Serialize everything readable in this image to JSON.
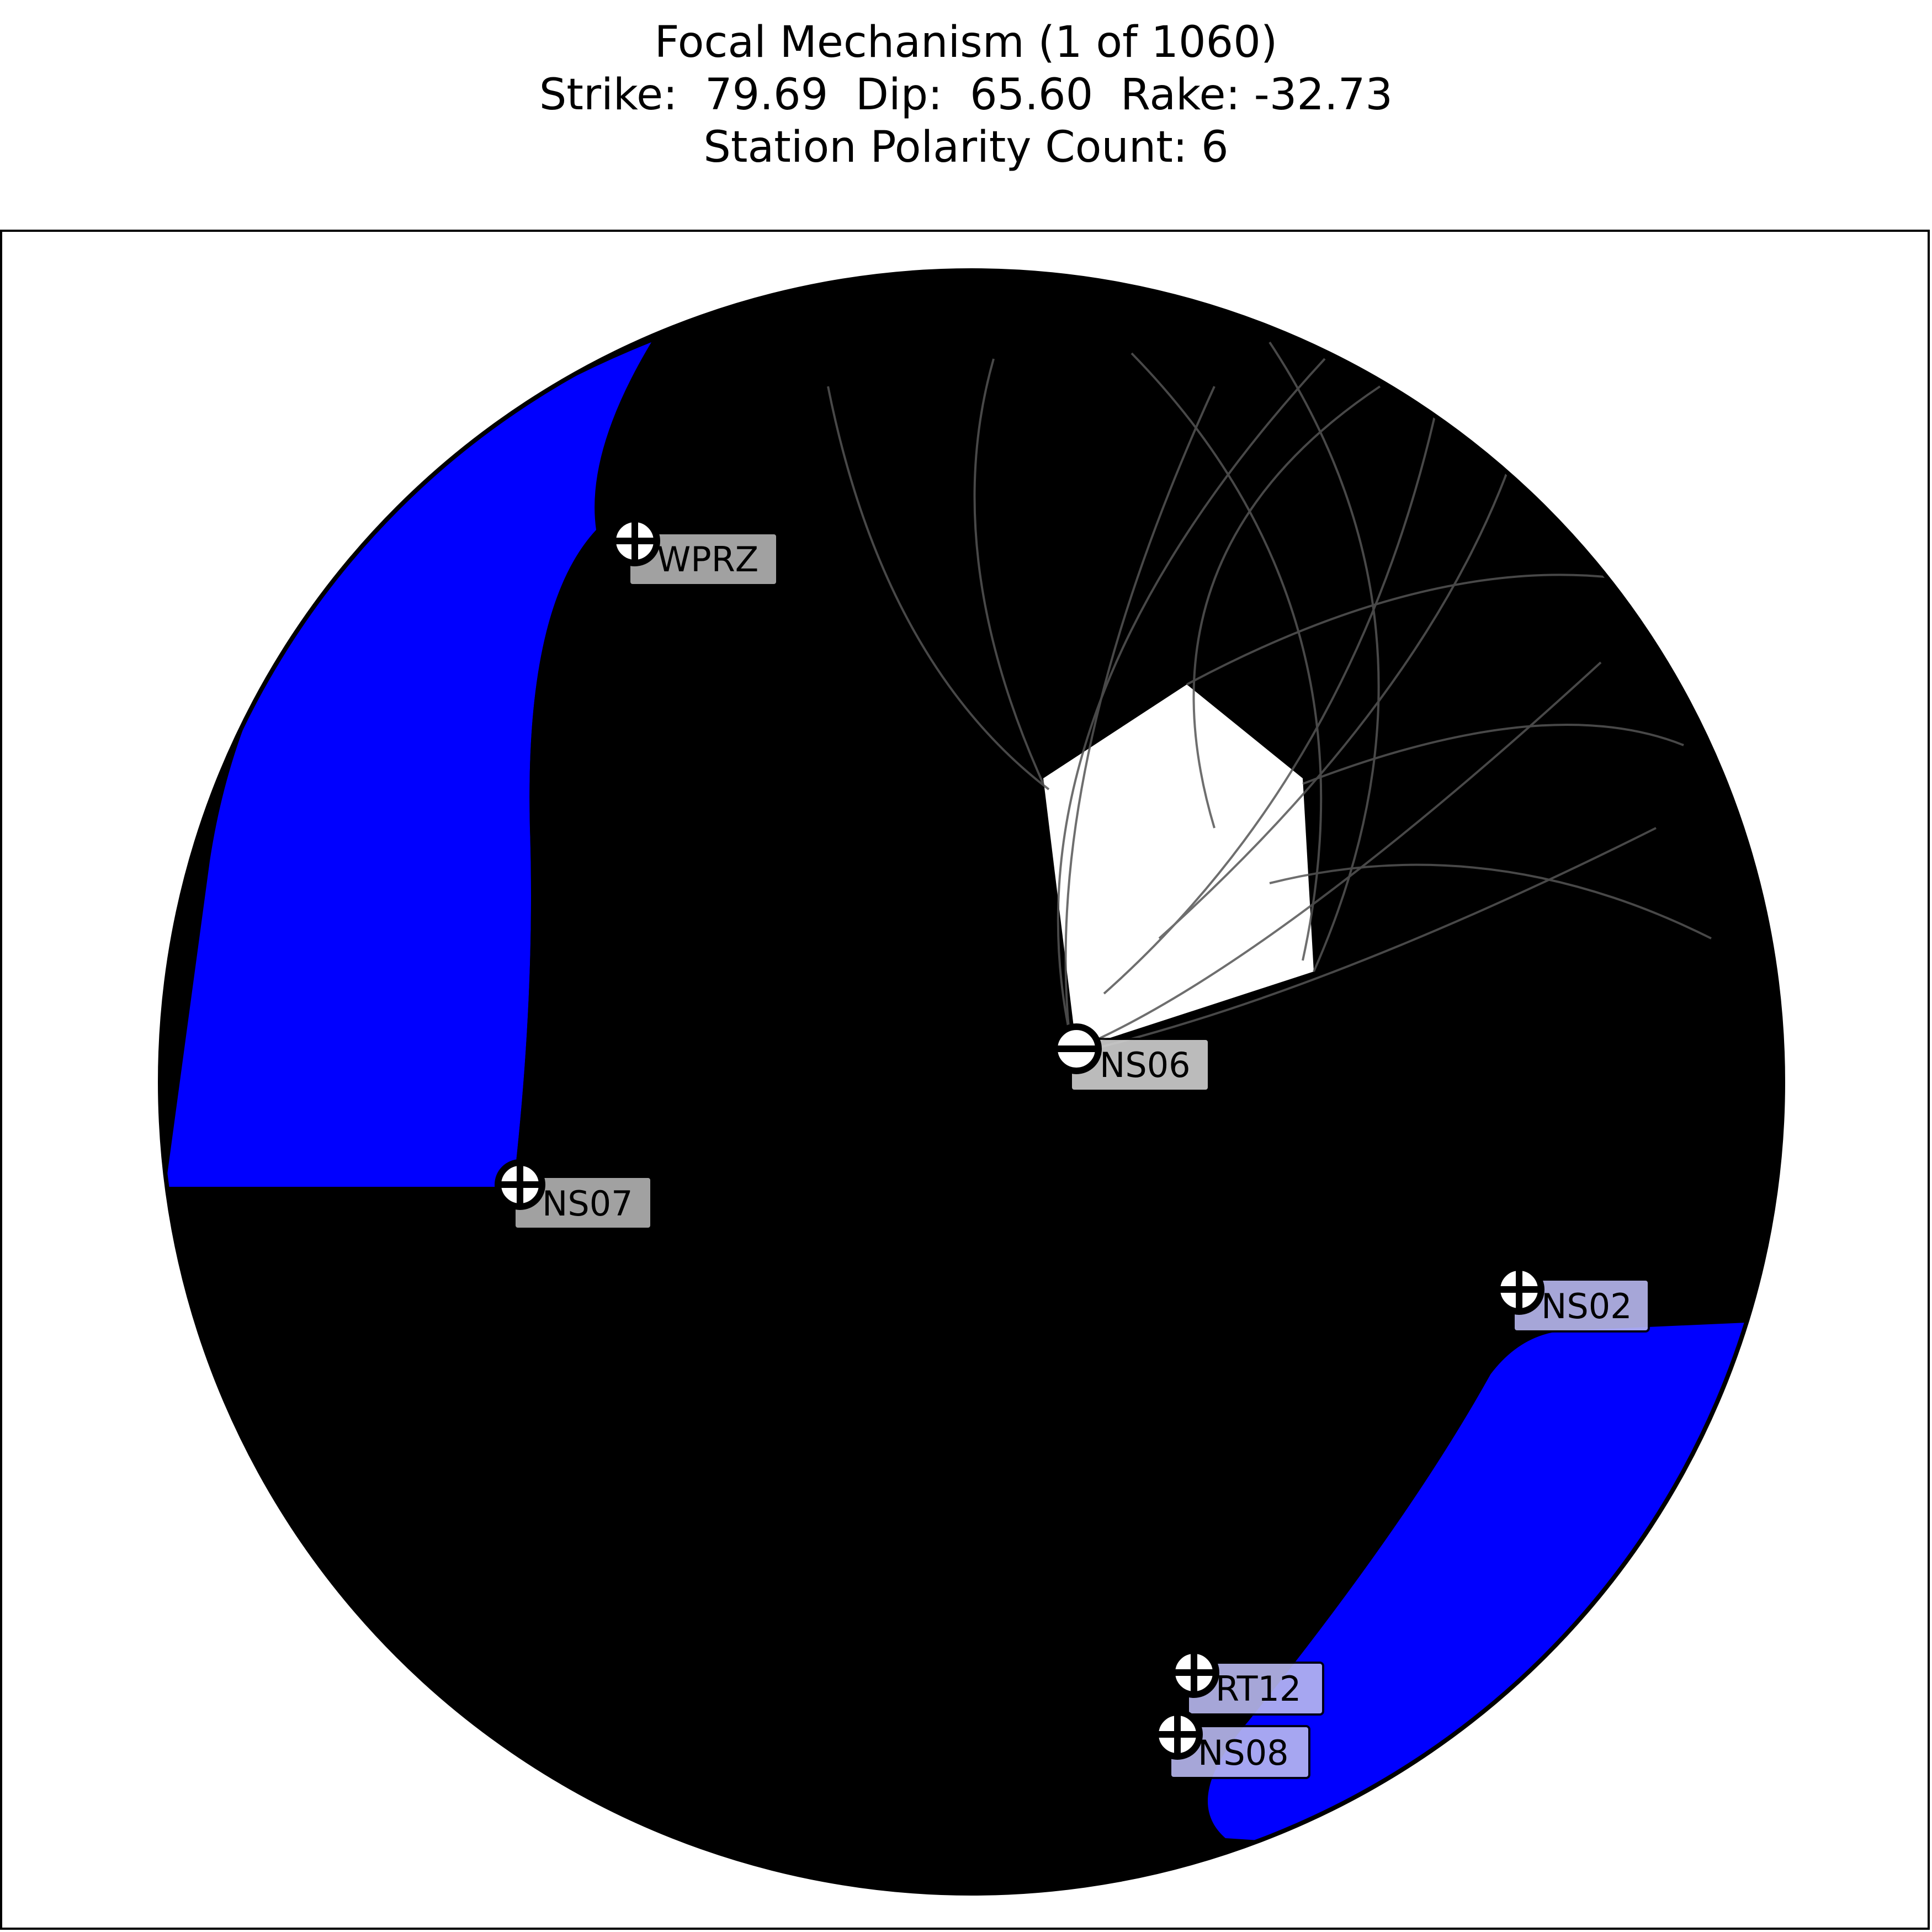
{
  "title": {
    "line1": "Focal Mechanism (1 of 1060)",
    "line2": "Strike:  79.69  Dip:  65.60  Rake: -32.73",
    "line3": "Station Polarity Count: 6"
  },
  "mechanism": {
    "index": 1,
    "total": 1060,
    "strike": 79.69,
    "dip": 65.6,
    "rake": -32.73
  },
  "colors": {
    "compressional_fill": "#0000ff",
    "nodal_lines": "#000000",
    "background": "#ffffff"
  },
  "stations": [
    {
      "name": "WPRZ",
      "polarity": "up",
      "label_color": "#b3b3b3"
    },
    {
      "name": "NS06",
      "polarity": "down",
      "label_color": "#d0d0d0"
    },
    {
      "name": "NS07",
      "polarity": "up",
      "label_color": "#b3b3b3"
    },
    {
      "name": "NS02",
      "polarity": "up",
      "label_color": "#b8b8f0"
    },
    {
      "name": "RT12",
      "polarity": "up",
      "label_color": "#b8b8f0"
    },
    {
      "name": "NS08",
      "polarity": "up",
      "label_color": "#b8b8f0"
    }
  ]
}
